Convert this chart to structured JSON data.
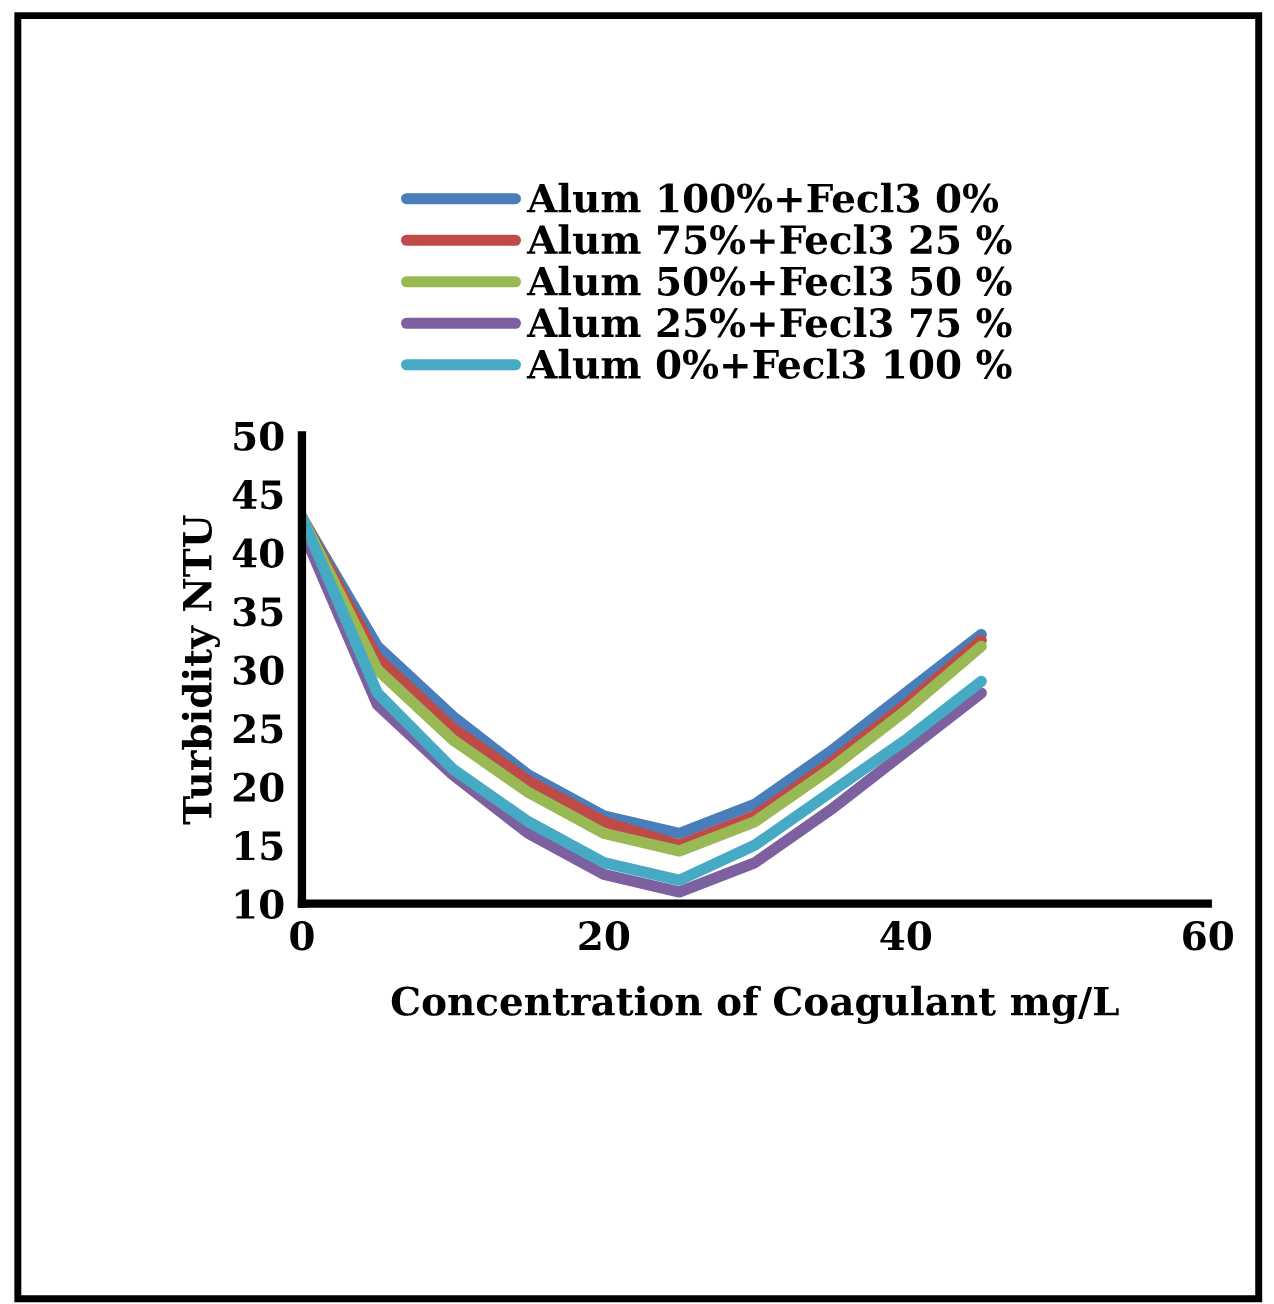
{
  "chart_data": {
    "type": "line",
    "xlabel": "Concentration of Coagulant mg/L",
    "ylabel": "Turbidity NTU",
    "x": [
      0,
      5,
      10,
      15,
      20,
      25,
      30,
      35,
      40,
      45
    ],
    "xlim": [
      0,
      60
    ],
    "xticks": [
      0,
      20,
      40,
      60
    ],
    "ylim": [
      10,
      50
    ],
    "yticks": [
      10,
      15,
      20,
      25,
      30,
      35,
      40,
      45,
      50
    ],
    "grid": false,
    "legend": "top",
    "marker": "none",
    "line_style": "solid",
    "series": [
      {
        "name": "Alum 100%+Fecl3 0%",
        "color": "#4a7ebb",
        "values": [
          43,
          32,
          26,
          21,
          17.5,
          16,
          18.5,
          23,
          28,
          33
        ]
      },
      {
        "name": "Alum 75%+Fecl3 25 %",
        "color": "#be4b48",
        "values": [
          43,
          31,
          25,
          20.5,
          17,
          15,
          17.5,
          22,
          27,
          32.5
        ]
      },
      {
        "name": "Alum 50%+Fecl3 50 %",
        "color": "#98b954",
        "values": [
          43,
          30,
          24,
          19.5,
          16,
          14.5,
          17,
          21.5,
          26.5,
          32
        ]
      },
      {
        "name": "Alum 25%+Fecl3 75 %",
        "color": "#7d60a0",
        "values": [
          42,
          27,
          21,
          16,
          12.5,
          11,
          13.5,
          18,
          23,
          28
        ]
      },
      {
        "name": "Alum 0%+Fecl3 100 %",
        "color": "#46aac5",
        "values": [
          43,
          28,
          21.5,
          17,
          13.5,
          12,
          15,
          19.5,
          24,
          29
        ]
      }
    ]
  }
}
